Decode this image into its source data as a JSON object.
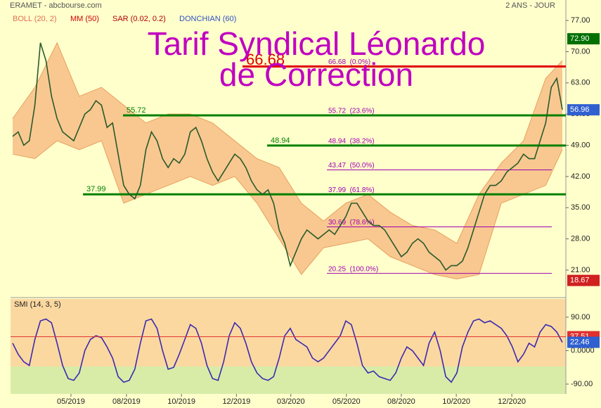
{
  "header": {
    "source": "ERAMET - abcbourse.com",
    "period": "2 ANS - JOUR"
  },
  "chart_data": [
    {
      "type": "line",
      "title": [
        "Tarif Syndical Léonardo",
        "de Correction"
      ],
      "indicators": [
        {
          "name": "BOLL (20, 2)",
          "color": "#e07050"
        },
        {
          "name": "MM (50)",
          "color": "#d00000"
        },
        {
          "name": "SAR (0.02, 0.2)",
          "color": "#b00000"
        },
        {
          "name": "DONCHIAN (60)",
          "color": "#3050c0"
        }
      ],
      "xlim": [
        0,
        99
      ],
      "ylim": [
        15.3,
        81.6
      ],
      "yticks": [
        {
          "value": 77,
          "label": "77.00"
        },
        {
          "value": 70,
          "label": "70.00"
        },
        {
          "value": 63,
          "label": "63.00"
        },
        {
          "value": 56,
          "label": "56.00"
        },
        {
          "value": 49,
          "label": "49.00"
        },
        {
          "value": 42,
          "label": "42.00"
        },
        {
          "value": 35,
          "label": "35.00"
        },
        {
          "value": 28,
          "label": "28.00"
        },
        {
          "value": 21,
          "label": "21.00"
        }
      ],
      "series": [
        {
          "name": "ERAMET",
          "color": "#2a5a2a",
          "values": [
            51,
            52,
            49,
            50,
            58,
            72,
            68,
            60,
            55,
            52,
            51,
            50,
            53,
            56,
            57,
            59,
            58,
            53,
            54,
            47,
            40,
            38,
            37,
            40,
            48,
            52,
            50,
            46,
            44,
            46,
            45,
            47,
            52,
            53,
            50,
            46,
            43,
            41,
            43,
            45,
            47,
            46,
            44,
            41,
            39,
            38,
            39,
            36,
            30,
            27,
            22,
            25,
            28,
            30,
            29,
            28,
            29,
            30,
            29,
            31,
            33,
            36,
            36,
            34,
            32,
            31,
            31,
            30,
            28,
            26,
            24,
            25,
            27,
            28,
            27,
            25,
            24,
            23,
            21,
            22,
            22,
            23,
            26,
            30,
            34,
            38,
            40,
            40,
            41,
            43,
            44,
            45,
            47,
            46,
            46,
            50,
            54,
            62,
            64,
            57
          ]
        }
      ],
      "bands": {
        "color": "#f8c890",
        "x": [
          0,
          4,
          8,
          12,
          16,
          20,
          24,
          28,
          32,
          36,
          40,
          44,
          48,
          52,
          56,
          60,
          64,
          68,
          72,
          76,
          80,
          84,
          88,
          92,
          96,
          99
        ],
        "upper": [
          55,
          62,
          72,
          60,
          62,
          58,
          54,
          56,
          56,
          54,
          50,
          46,
          44,
          36,
          32,
          36,
          38,
          34,
          31,
          30,
          27,
          38,
          45,
          50,
          64,
          68
        ],
        "lower": [
          47,
          46,
          50,
          48,
          50,
          36,
          38,
          40,
          42,
          40,
          42,
          36,
          28,
          20,
          26,
          27,
          28,
          24,
          22,
          20,
          19,
          20,
          36,
          38,
          40,
          48
        ]
      },
      "resistance": {
        "value": 66.68,
        "label": "66.68",
        "color": "#e00000"
      },
      "levels": [
        {
          "value": 55.72,
          "label": "55.72"
        },
        {
          "value": 48.94,
          "label": "48.94"
        },
        {
          "value": 37.99,
          "label": "37.99"
        }
      ],
      "level_color": "#008000",
      "fibonacci": [
        {
          "value": 66.68,
          "label": "66.68  (0.0%)"
        },
        {
          "value": 55.72,
          "label": "55.72  (23.6%)"
        },
        {
          "value": 48.94,
          "label": "48.94  (38.2%)"
        },
        {
          "value": 43.47,
          "label": "43.47  (50.0%)"
        },
        {
          "value": 37.99,
          "label": "37.99  (61.8%)"
        },
        {
          "value": 30.69,
          "label": "30.69  (78.6%)"
        },
        {
          "value": 20.25,
          "label": "20.25  (100.0%)"
        }
      ],
      "fib_color": "#a000b0",
      "badges": [
        {
          "value": 72.9,
          "label": "72.90",
          "color": "#007000"
        },
        {
          "value": 56.96,
          "label": "56.96",
          "color": "#3060d0"
        },
        {
          "value": 18.67,
          "label": "18.67",
          "color": "#d02020"
        }
      ]
    },
    {
      "type": "line",
      "title": "SMI (14, 3, 5)",
      "xlim": [
        0,
        99
      ],
      "ylim": [
        -116.5,
        139
      ],
      "yticks": [
        {
          "value": 90,
          "label": "90.00"
        },
        {
          "value": 0,
          "label": "0.0000"
        },
        {
          "value": -90,
          "label": "-90.00"
        }
      ],
      "xticks": [
        {
          "value": 10.5,
          "label": "05/2019"
        },
        {
          "value": 20.5,
          "label": "08/2019"
        },
        {
          "value": 30.4,
          "label": "10/2019"
        },
        {
          "value": 40.3,
          "label": "12/2019"
        },
        {
          "value": 50.1,
          "label": "03/2020"
        },
        {
          "value": 60.1,
          "label": "05/2020"
        },
        {
          "value": 70,
          "label": "08/2020"
        },
        {
          "value": 79.9,
          "label": "10/2020"
        },
        {
          "value": 89.9,
          "label": "12/2020"
        }
      ],
      "series": [
        {
          "name": "SMI",
          "color": "#3a2ab0",
          "values": [
            20,
            -10,
            -30,
            -40,
            30,
            80,
            85,
            75,
            20,
            -40,
            -75,
            -80,
            -60,
            0,
            30,
            40,
            35,
            10,
            -20,
            -70,
            -85,
            -80,
            -50,
            20,
            80,
            85,
            60,
            0,
            -50,
            -45,
            -10,
            30,
            70,
            60,
            20,
            -40,
            -75,
            -80,
            -30,
            40,
            75,
            60,
            20,
            -30,
            -60,
            -75,
            -80,
            -70,
            -20,
            40,
            60,
            30,
            20,
            10,
            -20,
            -30,
            -20,
            0,
            20,
            40,
            80,
            70,
            20,
            -40,
            -60,
            -55,
            -70,
            -75,
            -80,
            -60,
            -20,
            10,
            0,
            -20,
            -40,
            20,
            50,
            0,
            -70,
            -85,
            -60,
            10,
            50,
            80,
            85,
            75,
            80,
            70,
            60,
            40,
            10,
            -30,
            -10,
            20,
            10,
            50,
            70,
            65,
            50,
            22.46
          ]
        }
      ],
      "badges": [
        {
          "value": 37.51,
          "label": "37.51",
          "color": "#e03030"
        },
        {
          "value": 22.46,
          "label": "22.46",
          "color": "#3060d0"
        }
      ]
    }
  ]
}
